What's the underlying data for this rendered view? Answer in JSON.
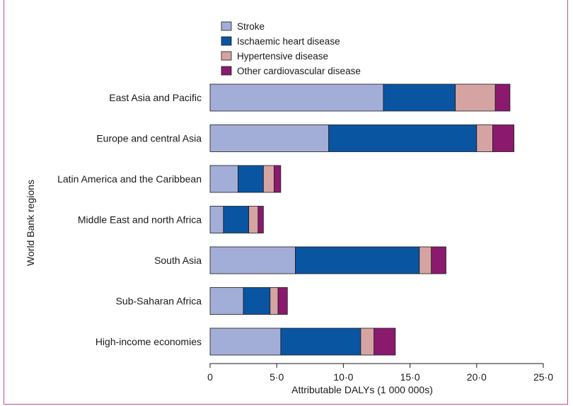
{
  "chart_data": {
    "type": "bar",
    "orientation": "horizontal",
    "stacked": true,
    "categories": [
      "East Asia and Pacific",
      "Europe and central Asia",
      "Latin America and the Caribbean",
      "Middle East and north Africa",
      "South Asia",
      "Sub-Saharan Africa",
      "High-income economies"
    ],
    "series": [
      {
        "name": "Stroke",
        "color": "#a3aed8",
        "values": [
          13.0,
          8.9,
          2.1,
          1.0,
          6.4,
          2.5,
          5.3
        ]
      },
      {
        "name": "Ischaemic heart disease",
        "color": "#0a55a2",
        "values": [
          5.4,
          11.1,
          1.9,
          1.9,
          9.3,
          2.0,
          6.0
        ]
      },
      {
        "name": "Hypertensive disease",
        "color": "#d6a3a3",
        "values": [
          3.0,
          1.2,
          0.8,
          0.7,
          0.9,
          0.6,
          1.0
        ]
      },
      {
        "name": "Other cardiovascular disease",
        "color": "#8b1a6e",
        "values": [
          1.1,
          1.6,
          0.5,
          0.4,
          1.1,
          0.7,
          1.6
        ]
      }
    ],
    "xlabel": "Attributable DALYs (1 000 000s)",
    "ylabel": "World Bank regions",
    "xlim": [
      0,
      25
    ],
    "xticks": [
      "0",
      "5·0",
      "10·0",
      "15·0",
      "20·0",
      "25·0"
    ],
    "legend_position": "top-center",
    "grid": false
  }
}
